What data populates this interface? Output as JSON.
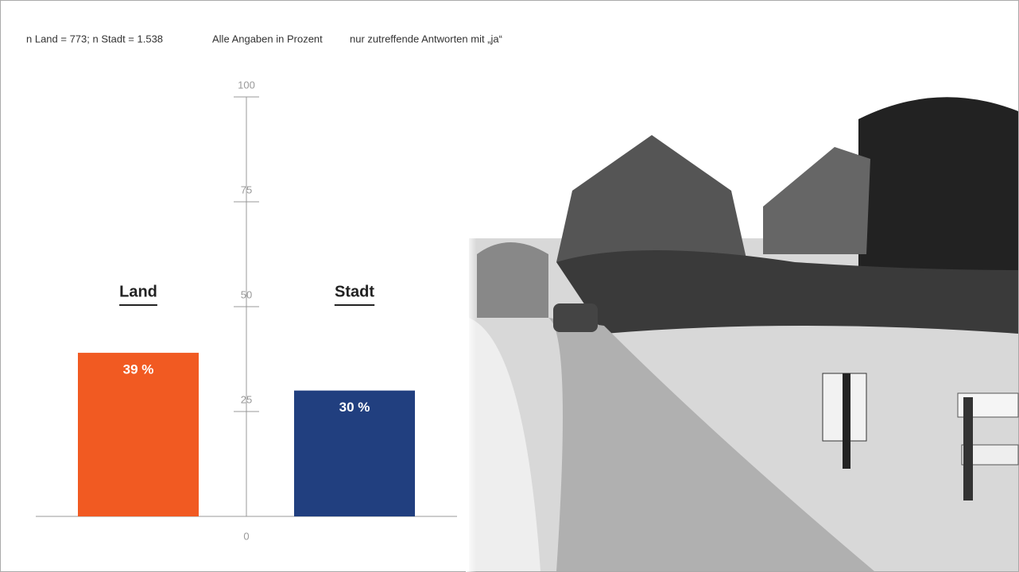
{
  "chart_data": {
    "type": "bar",
    "notes": [
      "n Land = 773; n Stadt = 1.538",
      "Alle Angaben in Prozent",
      "nur zutreffende Antworten mit „ja“"
    ],
    "categories": [
      "Land",
      "Stadt"
    ],
    "values": [
      39,
      30
    ],
    "value_labels": [
      "39 %",
      "30 %"
    ],
    "colors": [
      "#f15a22",
      "#213f7f"
    ],
    "ylim": [
      0,
      100
    ],
    "yticks": [
      0,
      25,
      50,
      75,
      100
    ]
  }
}
